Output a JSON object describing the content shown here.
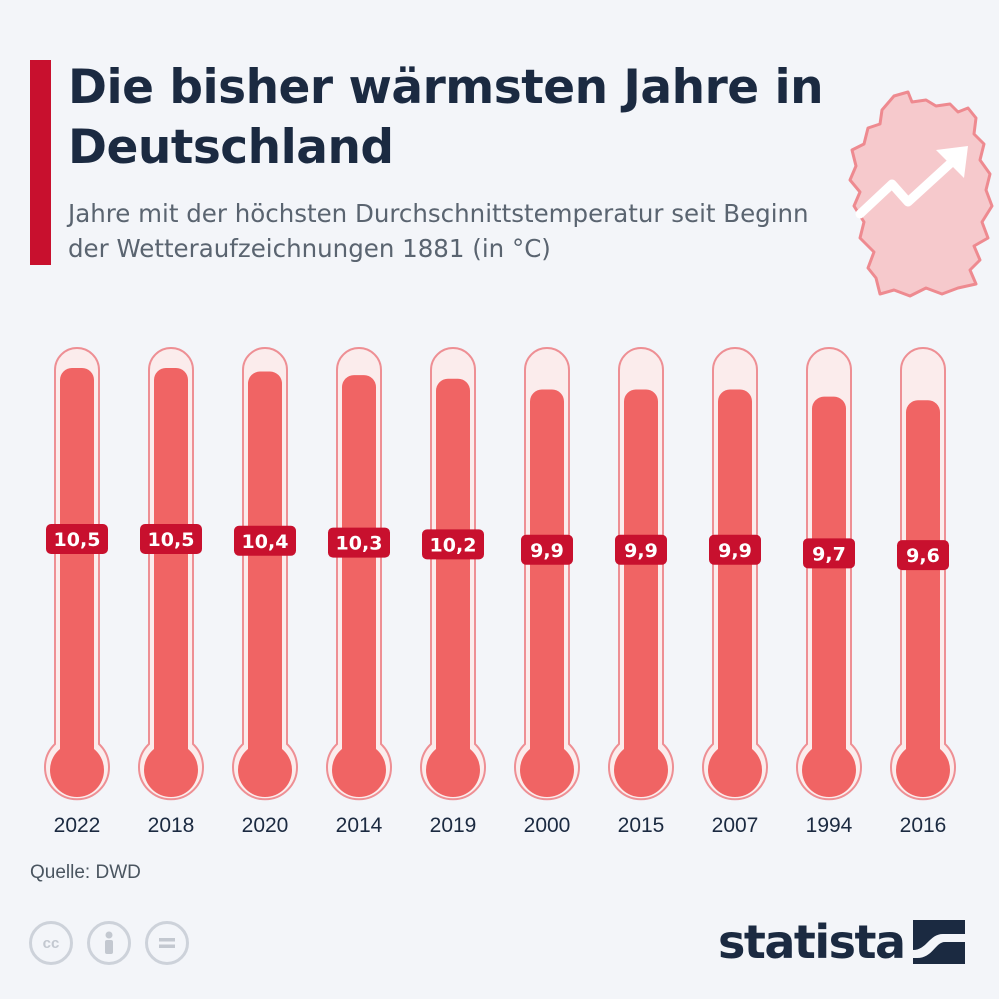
{
  "header": {
    "title": "Die bisher wärmsten Jahre in Deutschland",
    "subtitle": "Jahre mit der höchsten Durchschnittstemperatur seit Beginn der Wetteraufzeichnungen 1881 (in °C)"
  },
  "footer": {
    "source": "Quelle: DWD",
    "license_icons": [
      "cc-icon",
      "person-icon",
      "equals-icon"
    ],
    "brand": "statista"
  },
  "colors": {
    "accent": "#c8102e",
    "fill": "#f06464",
    "label_bg": "#c8102e",
    "text_dark": "#1b2a41"
  },
  "chart_data": {
    "type": "bar",
    "title": "Die bisher wärmsten Jahre in Deutschland",
    "subtitle": "Jahre mit der höchsten Durchschnittstemperatur seit Beginn der Wetteraufzeichnungen 1881 (in °C)",
    "categories": [
      "2022",
      "2018",
      "2020",
      "2014",
      "2019",
      "2000",
      "2015",
      "2007",
      "1994",
      "2016"
    ],
    "values": [
      10.5,
      10.5,
      10.4,
      10.3,
      10.2,
      9.9,
      9.9,
      9.9,
      9.7,
      9.6
    ],
    "labels": [
      "10,5",
      "10,5",
      "10,4",
      "10,3",
      "10,2",
      "9,9",
      "9,9",
      "9,9",
      "9,7",
      "9,6"
    ],
    "xlabel": "",
    "ylabel": "",
    "style": "thermometer",
    "grid": false,
    "legend": "none"
  }
}
